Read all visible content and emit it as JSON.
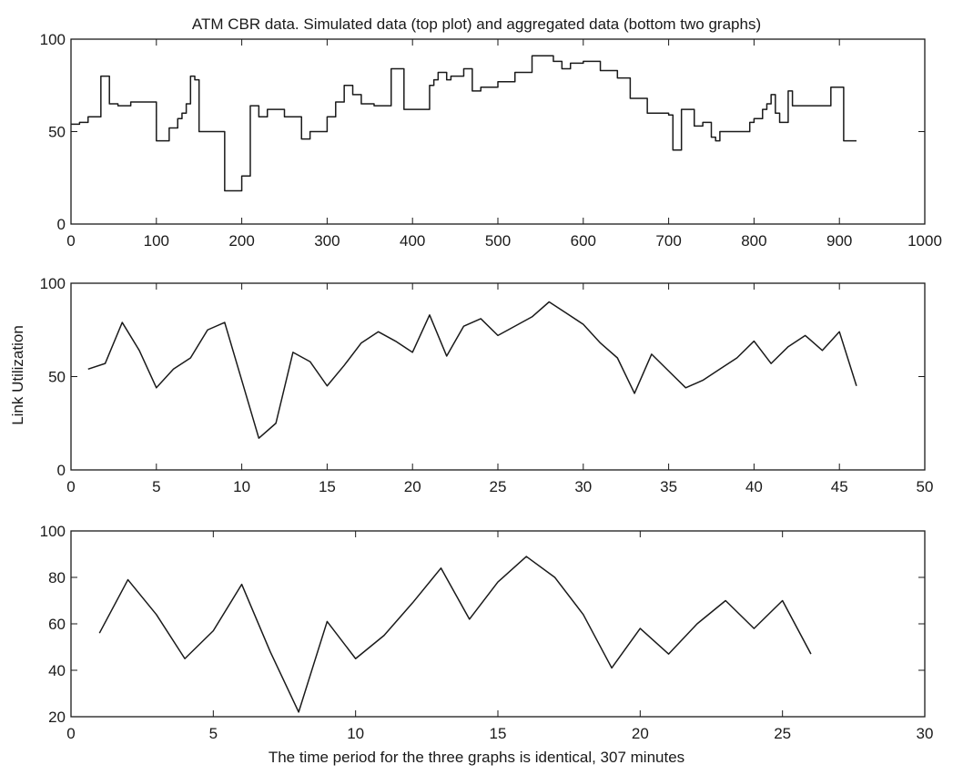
{
  "figure": {
    "title": "ATM CBR data. Simulated data (top plot) and aggregated data (bottom two graphs)",
    "xlabel": "The time period for the three graphs is identical, 307 minutes",
    "ylabel": "Link Utilization"
  },
  "chart_data": [
    {
      "type": "line",
      "subtype": "step",
      "title": "",
      "xlabel": "",
      "ylabel": "",
      "xlim": [
        0,
        1000
      ],
      "ylim": [
        0,
        100
      ],
      "xticks": [
        0,
        100,
        200,
        300,
        400,
        500,
        600,
        700,
        800,
        900,
        1000
      ],
      "yticks": [
        0,
        50,
        100
      ],
      "grid": false,
      "series": [
        {
          "color": "#1a1a1a",
          "x": [
            0,
            10,
            20,
            35,
            45,
            55,
            70,
            100,
            115,
            125,
            130,
            135,
            140,
            145,
            150,
            160,
            180,
            190,
            200,
            210,
            220,
            230,
            250,
            270,
            280,
            300,
            310,
            320,
            330,
            340,
            355,
            375,
            390,
            420,
            425,
            430,
            440,
            445,
            450,
            460,
            470,
            480,
            500,
            520,
            540,
            565,
            575,
            585,
            600,
            620,
            640,
            655,
            675,
            700,
            705,
            715,
            730,
            740,
            750,
            755,
            760,
            780,
            795,
            800,
            810,
            815,
            820,
            825,
            830,
            840,
            845,
            855,
            870,
            890,
            905,
            920
          ],
          "y": [
            54,
            55,
            58,
            80,
            65,
            64,
            66,
            45,
            52,
            57,
            60,
            65,
            80,
            78,
            50,
            50,
            18,
            18,
            26,
            64,
            58,
            62,
            58,
            46,
            50,
            58,
            66,
            75,
            70,
            65,
            64,
            84,
            62,
            75,
            78,
            82,
            78,
            80,
            80,
            84,
            72,
            74,
            77,
            82,
            91,
            88,
            84,
            87,
            88,
            83,
            79,
            68,
            60,
            59,
            40,
            62,
            53,
            55,
            47,
            45,
            50,
            50,
            55,
            57,
            62,
            65,
            70,
            60,
            55,
            72,
            64,
            64,
            64,
            74,
            45,
            45
          ]
        }
      ]
    },
    {
      "type": "line",
      "title": "",
      "xlabel": "",
      "ylabel": "Link Utilization",
      "xlim": [
        0,
        50
      ],
      "ylim": [
        0,
        100
      ],
      "xticks": [
        0,
        5,
        10,
        15,
        20,
        25,
        30,
        35,
        40,
        45,
        50
      ],
      "yticks": [
        0,
        50,
        100
      ],
      "grid": false,
      "series": [
        {
          "color": "#1a1a1a",
          "x": [
            1,
            2,
            3,
            4,
            5,
            6,
            7,
            8,
            9,
            10,
            11,
            12,
            13,
            14,
            15,
            16,
            17,
            18,
            19,
            20,
            21,
            22,
            23,
            24,
            25,
            26,
            27,
            28,
            29,
            30,
            31,
            32,
            33,
            34,
            35,
            36,
            37,
            38,
            39,
            40,
            41,
            42,
            43,
            44,
            45,
            46
          ],
          "y": [
            54,
            57,
            79,
            64,
            44,
            54,
            60,
            75,
            79,
            48,
            17,
            25,
            63,
            58,
            45,
            56,
            68,
            74,
            69,
            63,
            83,
            61,
            77,
            81,
            72,
            77,
            82,
            90,
            84,
            78,
            68,
            60,
            41,
            62,
            53,
            44,
            48,
            54,
            60,
            69,
            57,
            66,
            72,
            64,
            74,
            45
          ]
        }
      ]
    },
    {
      "type": "line",
      "title": "",
      "xlabel": "The time period for the three graphs is identical, 307 minutes",
      "ylabel": "",
      "xlim": [
        0,
        30
      ],
      "ylim": [
        20,
        100
      ],
      "xticks": [
        0,
        5,
        10,
        15,
        20,
        25,
        30
      ],
      "yticks": [
        20,
        40,
        60,
        80,
        100
      ],
      "grid": false,
      "series": [
        {
          "color": "#1a1a1a",
          "x": [
            1,
            2,
            3,
            4,
            5,
            6,
            7,
            8,
            9,
            10,
            11,
            12,
            13,
            14,
            15,
            16,
            17,
            18,
            19,
            20,
            21,
            22,
            23,
            24,
            25,
            26
          ],
          "y": [
            56,
            79,
            64,
            45,
            57,
            77,
            48,
            22,
            61,
            45,
            55,
            69,
            84,
            62,
            78,
            89,
            80,
            64,
            41,
            58,
            47,
            60,
            70,
            58,
            70,
            47
          ]
        }
      ]
    }
  ]
}
